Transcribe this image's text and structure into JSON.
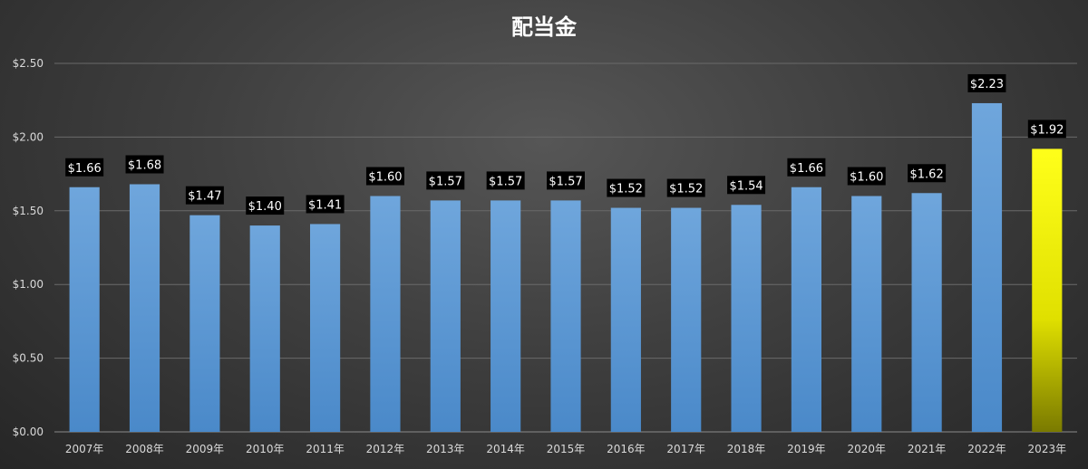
{
  "chart_data": {
    "type": "bar",
    "title": "配当金",
    "xlabel": "",
    "ylabel": "",
    "categories": [
      "2007年",
      "2008年",
      "2009年",
      "2010年",
      "2011年",
      "2012年",
      "2013年",
      "2014年",
      "2015年",
      "2016年",
      "2017年",
      "2018年",
      "2019年",
      "2020年",
      "2021年",
      "2022年",
      "2023年"
    ],
    "values": [
      1.66,
      1.68,
      1.47,
      1.4,
      1.41,
      1.6,
      1.57,
      1.57,
      1.57,
      1.52,
      1.52,
      1.54,
      1.66,
      1.6,
      1.62,
      2.23,
      1.92
    ],
    "data_labels": [
      "$1.66",
      "$1.68",
      "$1.47",
      "$1.40",
      "$1.41",
      "$1.60",
      "$1.57",
      "$1.57",
      "$1.57",
      "$1.52",
      "$1.52",
      "$1.54",
      "$1.66",
      "$1.60",
      "$1.62",
      "$2.23",
      "$1.92"
    ],
    "ylim": [
      0,
      2.5
    ],
    "yticks": [
      0,
      0.5,
      1.0,
      1.5,
      2.0,
      2.5
    ],
    "ytick_labels": [
      "$0.00",
      "$0.50",
      "$1.00",
      "$1.50",
      "$2.00",
      "$2.50"
    ],
    "grid": true,
    "colors": {
      "bar": "#5b9bd5",
      "highlight_bar": "#ffff00",
      "highlight_index": 16,
      "label_bg": "#000000",
      "label_text": "#ffffff",
      "axis_text": "#d9d9d9",
      "gridline": "#6a6a6a"
    }
  }
}
